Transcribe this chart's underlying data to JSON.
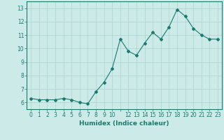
{
  "xlabel": "Humidex (Indice chaleur)",
  "x_values": [
    0,
    1,
    2,
    3,
    4,
    5,
    6,
    7,
    8,
    9,
    10,
    11,
    12,
    13,
    14,
    15,
    16,
    17,
    18,
    19,
    20,
    21,
    22,
    23
  ],
  "y_values": [
    6.3,
    6.2,
    6.2,
    6.2,
    6.3,
    6.2,
    6.0,
    5.9,
    6.8,
    7.5,
    8.5,
    10.7,
    9.8,
    9.5,
    10.4,
    11.2,
    10.7,
    11.6,
    12.9,
    12.4,
    11.5,
    11.0,
    10.7,
    10.7
  ],
  "line_color": "#1a7a6e",
  "marker": "D",
  "marker_size": 2.0,
  "line_width": 0.8,
  "bg_color": "#cceae7",
  "grid_color": "#aad4d0",
  "axis_color": "#1a7a6e",
  "tick_color": "#1a7a6e",
  "label_color": "#1a7a6e",
  "xlim": [
    -0.5,
    23.5
  ],
  "ylim": [
    5.5,
    13.5
  ],
  "yticks": [
    6,
    7,
    8,
    9,
    10,
    11,
    12,
    13
  ],
  "xtick_labels": [
    "0",
    "1",
    "2",
    "3",
    "4",
    "5",
    "6",
    "7",
    "8",
    "9",
    "10",
    "",
    "12",
    "13",
    "14",
    "15",
    "16",
    "17",
    "18",
    "19",
    "20",
    "21",
    "22",
    "23"
  ],
  "label_fontsize": 6.5,
  "tick_fontsize": 5.5
}
